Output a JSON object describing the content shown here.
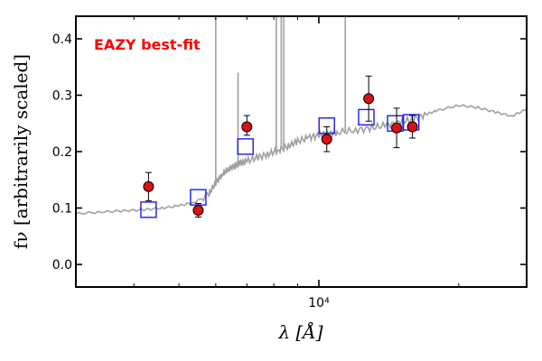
{
  "chart_data": {
    "type": "scatter",
    "title": "",
    "annotation": "EAZY best-fit",
    "xlabel": "λ [Å]",
    "ylabel": "fν [arbitrarily scaled]",
    "xscale": "log",
    "xlim": [
      3000,
      28000
    ],
    "ylim": [
      -0.04,
      0.44
    ],
    "yticks": [
      0.0,
      0.1,
      0.2,
      0.3,
      0.4
    ],
    "ytick_labels": [
      "0.0",
      "0.1",
      "0.2",
      "0.3",
      "0.4"
    ],
    "xticks": [
      10000
    ],
    "xtick_labels": [
      "10⁴"
    ],
    "grid": false,
    "colors": {
      "observed": "#dd1111",
      "model": "#1a1aee",
      "sed": "#a0a0a0",
      "annotation": "#ff0000"
    },
    "series": [
      {
        "kind": "observed",
        "marker": "circle",
        "x": [
          4300,
          5500,
          7000,
          10400,
          12800,
          14700,
          15900
        ],
        "y": [
          0.138,
          0.096,
          0.244,
          0.222,
          0.294,
          0.242,
          0.244
        ],
        "yerr_low": [
          0.025,
          0.012,
          0.015,
          0.022,
          0.04,
          0.035,
          0.02
        ],
        "yerr_high": [
          0.025,
          0.012,
          0.02,
          0.022,
          0.04,
          0.035,
          0.02
        ]
      },
      {
        "kind": "model",
        "marker": "open-square",
        "x": [
          4300,
          5500,
          6950,
          10400,
          12650,
          14600,
          15800
        ],
        "y": [
          0.097,
          0.119,
          0.209,
          0.246,
          0.261,
          0.25,
          0.252
        ]
      },
      {
        "kind": "sed",
        "marker": "line",
        "x": [
          3000,
          3400,
          3800,
          4200,
          4600,
          5000,
          5400,
          5800,
          6000,
          6200,
          6400,
          6600,
          6800,
          7000,
          7400,
          7800,
          8200,
          8600,
          9000,
          9500,
          10000,
          10500,
          11000,
          12000,
          13000,
          14000,
          15000,
          16000,
          17000,
          18000,
          20000,
          22000,
          24000,
          26000,
          28000
        ],
        "y": [
          0.09,
          0.093,
          0.095,
          0.097,
          0.1,
          0.104,
          0.11,
          0.125,
          0.145,
          0.16,
          0.17,
          0.175,
          0.18,
          0.183,
          0.19,
          0.196,
          0.203,
          0.21,
          0.218,
          0.225,
          0.229,
          0.232,
          0.234,
          0.238,
          0.242,
          0.247,
          0.252,
          0.258,
          0.266,
          0.273,
          0.282,
          0.278,
          0.27,
          0.263,
          0.275
        ],
        "emission_lines": [
          {
            "x": 6000,
            "y": 0.44
          },
          {
            "x": 6700,
            "y": 0.34
          },
          {
            "x": 8100,
            "y": 0.44
          },
          {
            "x": 8300,
            "y": 0.44
          },
          {
            "x": 8400,
            "y": 0.44
          },
          {
            "x": 11400,
            "y": 0.44
          }
        ]
      }
    ]
  }
}
